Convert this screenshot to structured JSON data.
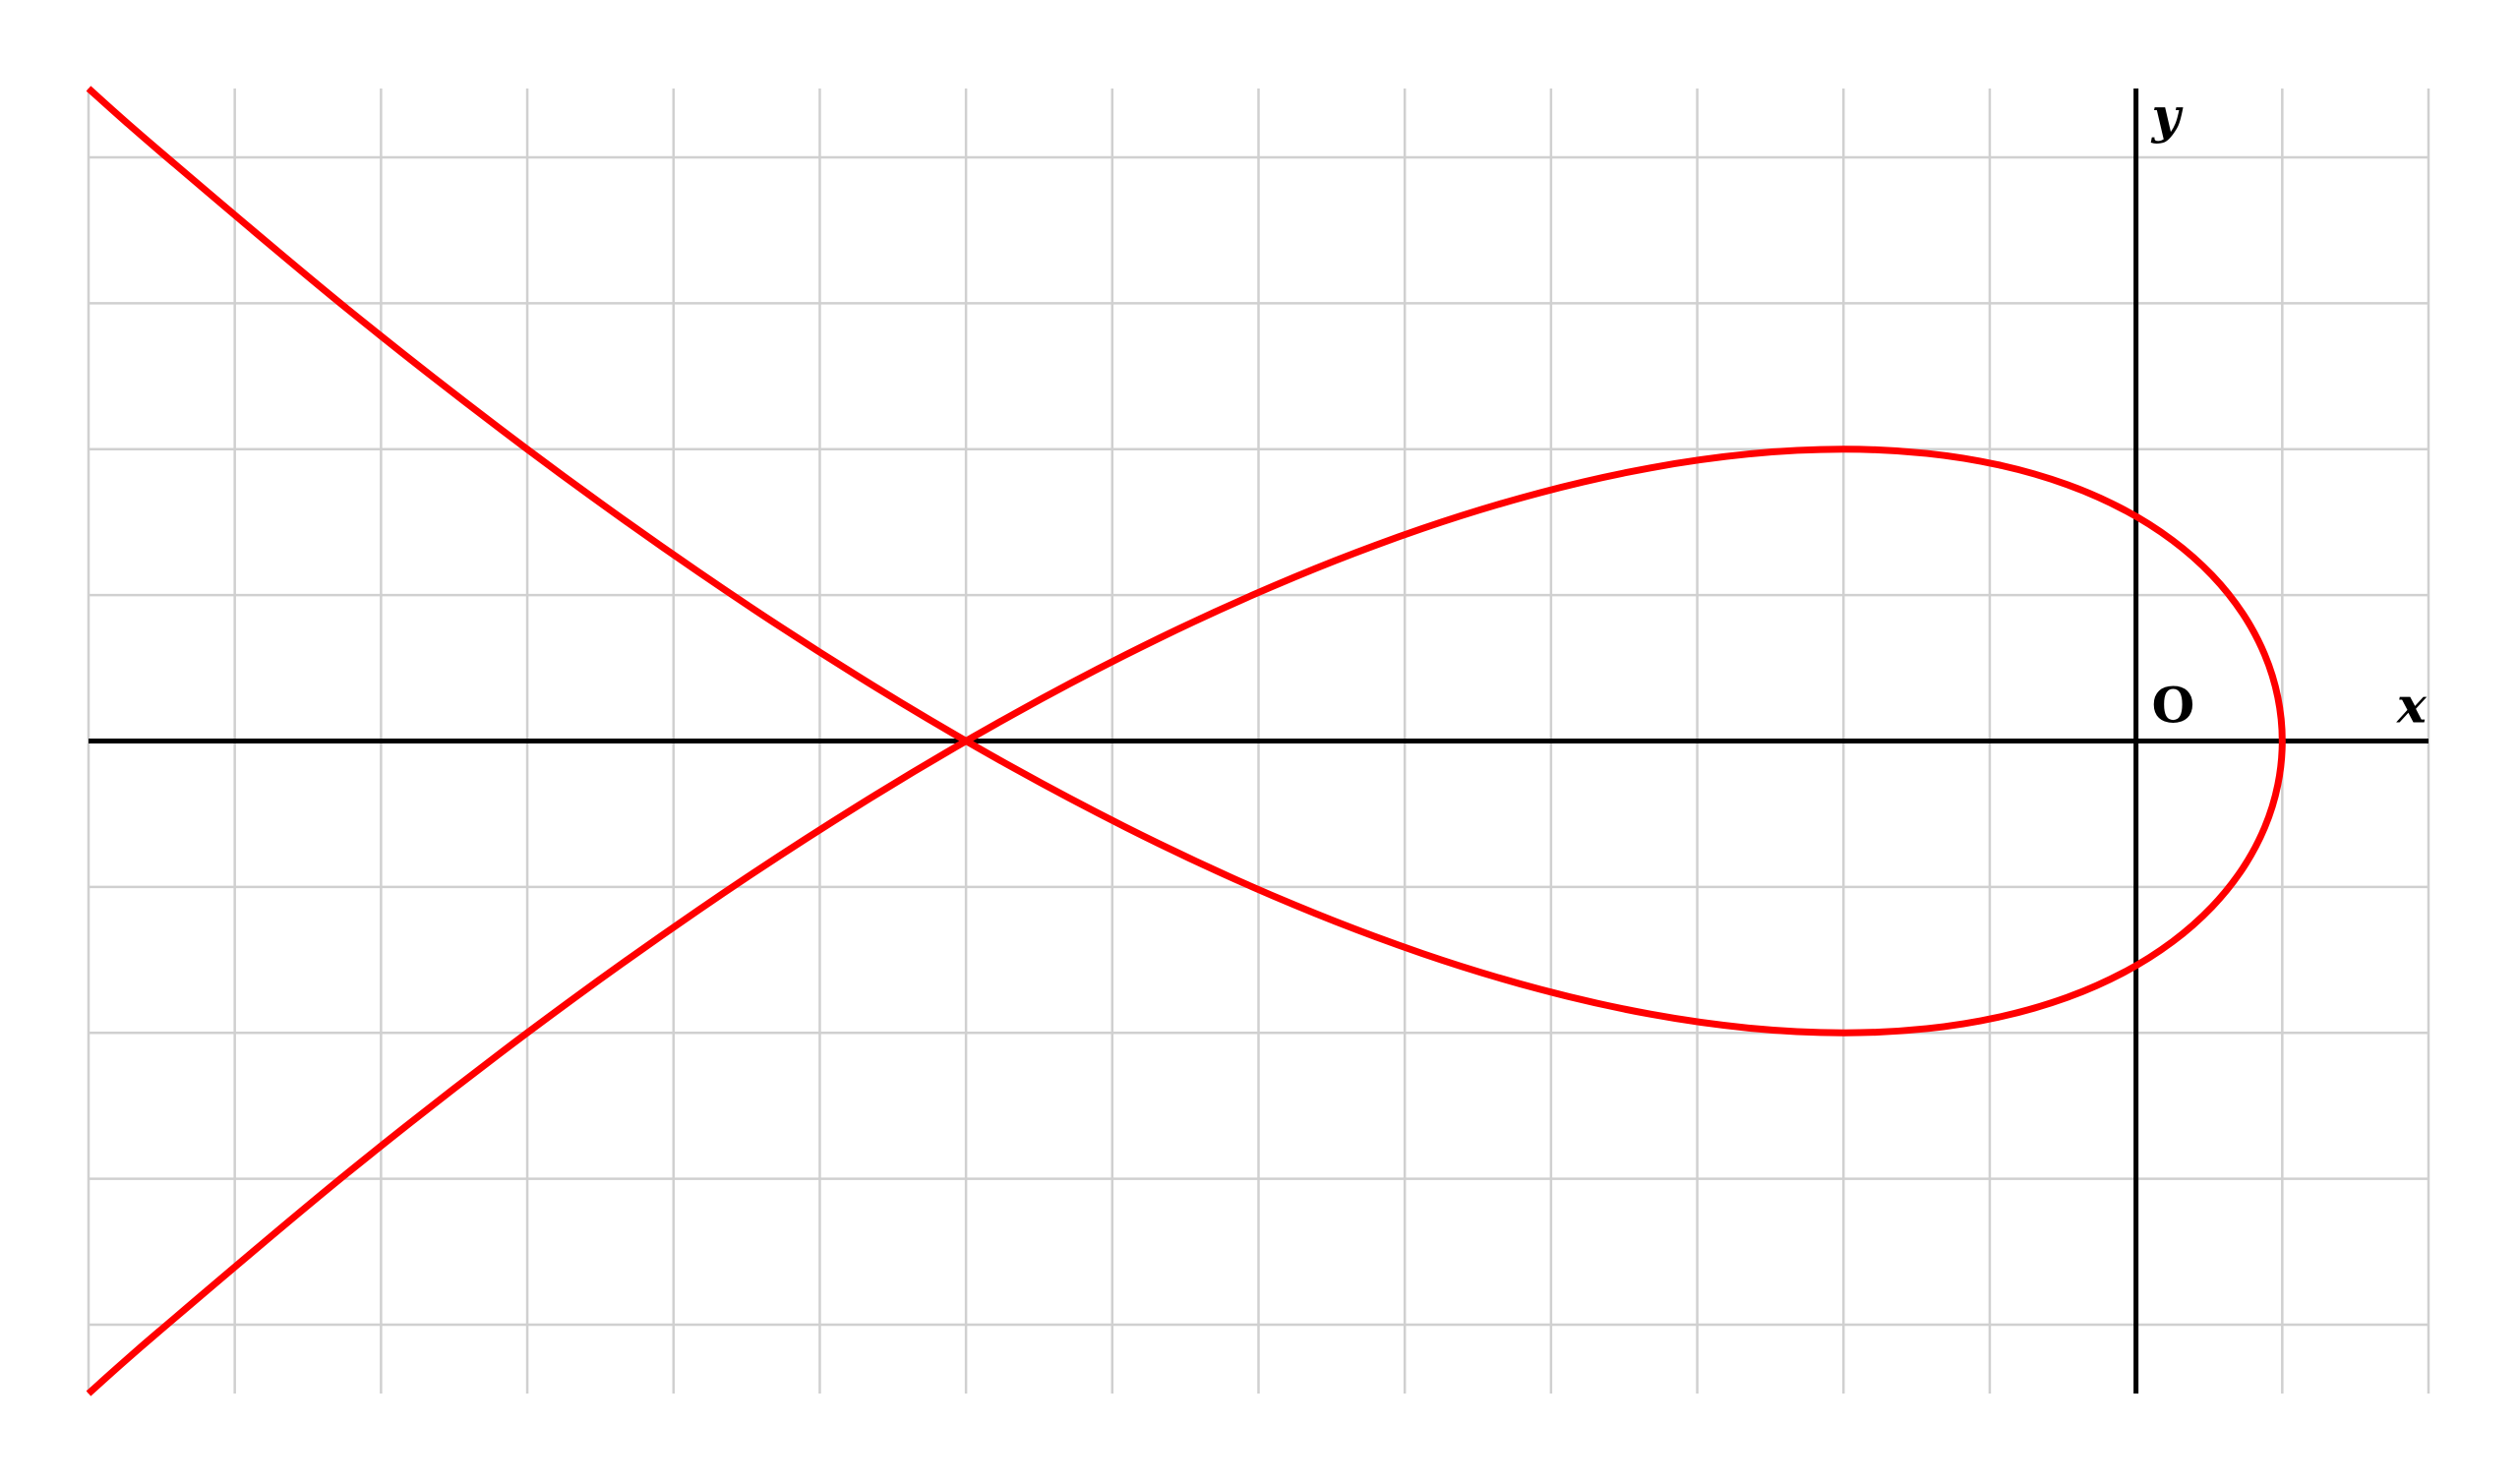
{
  "chart_data": {
    "type": "line",
    "xlabel": "x",
    "ylabel": "y",
    "origin_label": "O",
    "x": [
      -14,
      -13.52,
      -12.23,
      -11,
      -9.83,
      -8.72,
      -7.67,
      -6.68,
      -5.75,
      -4.88,
      -4.07,
      -3.32,
      -2.63,
      -2,
      -1.43,
      -0.92,
      -0.47,
      -0.08,
      0.25,
      0.52,
      0.73,
      0.88,
      0.97,
      1,
      0.97,
      0.88,
      0.73,
      0.52,
      0.25,
      -0.08,
      -0.47,
      -0.92,
      -1.43,
      -2,
      -2.63,
      -3.32,
      -4.07,
      -4.88,
      -5.75,
      -6.68,
      -7.67,
      -8.72,
      -9.83,
      -11,
      -12.23,
      -13.52,
      -14
    ],
    "series": [
      {
        "color": "#ff0000",
        "values": [
          4.472,
          4.048,
          2.961,
          2,
          1.159,
          0.432,
          -0.187,
          -0.704,
          -1.125,
          -1.456,
          -1.703,
          -1.872,
          -1.969,
          -2,
          -1.971,
          -1.888,
          -1.757,
          -1.584,
          -1.375,
          -1.136,
          -0.873,
          -0.592,
          -0.299,
          0,
          0.299,
          0.592,
          0.873,
          1.136,
          1.375,
          1.584,
          1.757,
          1.888,
          1.971,
          2,
          1.969,
          1.872,
          1.703,
          1.456,
          1.125,
          0.704,
          0.187,
          -0.432,
          -1.159,
          -2,
          -2.961,
          -4.048,
          -4.472
        ]
      }
    ],
    "xlim": [
      -14,
      2
    ],
    "ylim": [
      -4.472,
      4.472
    ],
    "xticks": [
      -14,
      -13,
      -12,
      -11,
      -10,
      -9,
      -8,
      -7,
      -6,
      -5,
      -4,
      -3,
      -2,
      -1,
      0,
      1,
      2
    ],
    "yticks": [
      -4,
      -3,
      -2,
      -1,
      0,
      1,
      2,
      3,
      4
    ],
    "grid": true
  }
}
